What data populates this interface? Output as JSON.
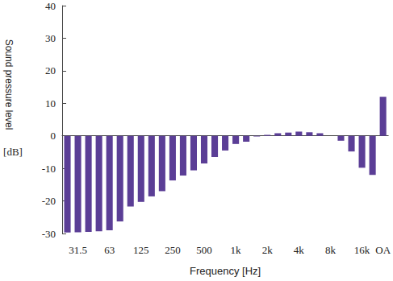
{
  "chart_data": {
    "type": "bar",
    "x_label": "Frequency [Hz]",
    "y_label": "Sound pressure level",
    "y_unit_label": "[dB]",
    "categories": [
      null,
      "31.5",
      null,
      null,
      "63",
      null,
      null,
      "125",
      null,
      null,
      "250",
      null,
      null,
      "500",
      null,
      null,
      "1k",
      null,
      null,
      "2k",
      null,
      null,
      "4k",
      null,
      null,
      "8k",
      null,
      null,
      "16k",
      null,
      "OA"
    ],
    "values": [
      -29.7,
      -29.6,
      -29.5,
      -29.3,
      -29.0,
      -26.3,
      -21.7,
      -20.3,
      -18.6,
      -17.0,
      -13.7,
      -12.2,
      -10.6,
      -8.5,
      -6.5,
      -4.5,
      -2.5,
      -1.8,
      -0.2,
      0.3,
      0.8,
      1.0,
      1.3,
      1.1,
      0.8,
      0.0,
      -1.5,
      -4.8,
      -9.8,
      -12.0,
      12.0
    ],
    "color": "#5b3e96",
    "ylim": [
      -30,
      40
    ],
    "yticks": [
      -30,
      -20,
      -10,
      0,
      10,
      20,
      30,
      40
    ],
    "grid": false
  }
}
